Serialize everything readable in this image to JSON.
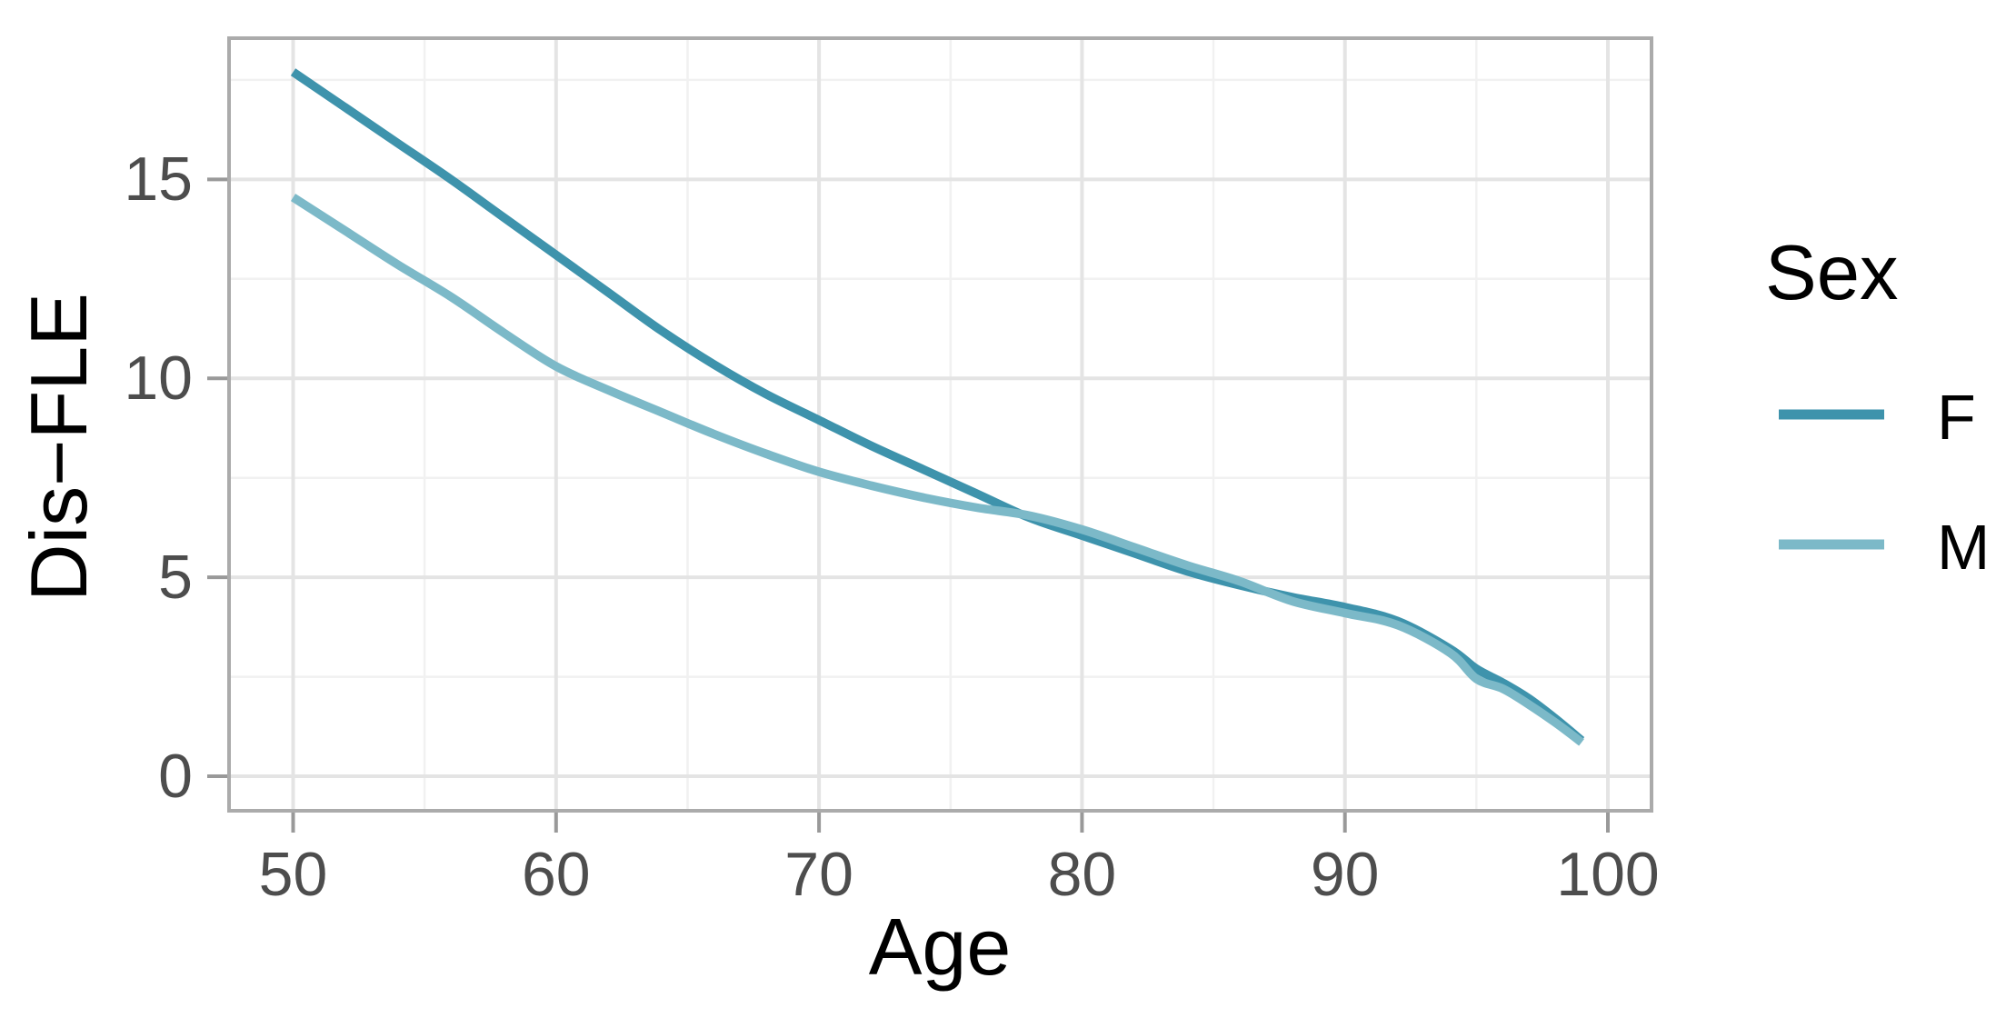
{
  "chart_data": {
    "type": "line",
    "title": "",
    "xlabel": "Age",
    "ylabel": "Dis−FLE",
    "x_ticks": [
      50,
      60,
      70,
      80,
      90,
      100
    ],
    "x_minor_ticks": [
      55,
      65,
      75,
      85,
      95
    ],
    "y_ticks": [
      0,
      5,
      10,
      15
    ],
    "y_minor_ticks": [
      2.5,
      7.5,
      12.5,
      17.5
    ],
    "xlim": [
      47.5,
      101.7
    ],
    "ylim": [
      -0.9,
      18.6
    ],
    "grid": "major and minor gridlines on, white panel with gray border",
    "legend": {
      "title": "Sex",
      "position": "right"
    },
    "series": [
      {
        "name": "F",
        "color": "#3E93AC",
        "points": [
          [
            50,
            17.7
          ],
          [
            52,
            16.8
          ],
          [
            54,
            15.9
          ],
          [
            56,
            15.0
          ],
          [
            58,
            14.05
          ],
          [
            60,
            13.1
          ],
          [
            62,
            12.15
          ],
          [
            64,
            11.2
          ],
          [
            66,
            10.35
          ],
          [
            68,
            9.6
          ],
          [
            70,
            8.95
          ],
          [
            72,
            8.3
          ],
          [
            74,
            7.7
          ],
          [
            76,
            7.1
          ],
          [
            78,
            6.5
          ],
          [
            80,
            6.05
          ],
          [
            82,
            5.6
          ],
          [
            84,
            5.15
          ],
          [
            86,
            4.8
          ],
          [
            88,
            4.5
          ],
          [
            90,
            4.25
          ],
          [
            92,
            3.9
          ],
          [
            94,
            3.2
          ],
          [
            95,
            2.7
          ],
          [
            96,
            2.35
          ],
          [
            97,
            1.95
          ],
          [
            98,
            1.45
          ],
          [
            99,
            0.9
          ]
        ]
      },
      {
        "name": "M",
        "color": "#7CB9C8",
        "points": [
          [
            50,
            14.55
          ],
          [
            52,
            13.7
          ],
          [
            54,
            12.85
          ],
          [
            56,
            12.05
          ],
          [
            58,
            11.15
          ],
          [
            60,
            10.3
          ],
          [
            62,
            9.7
          ],
          [
            64,
            9.15
          ],
          [
            66,
            8.6
          ],
          [
            68,
            8.1
          ],
          [
            70,
            7.65
          ],
          [
            72,
            7.3
          ],
          [
            74,
            7.0
          ],
          [
            76,
            6.75
          ],
          [
            78,
            6.55
          ],
          [
            80,
            6.2
          ],
          [
            82,
            5.75
          ],
          [
            84,
            5.3
          ],
          [
            86,
            4.9
          ],
          [
            88,
            4.4
          ],
          [
            90,
            4.1
          ],
          [
            92,
            3.8
          ],
          [
            94,
            3.1
          ],
          [
            95,
            2.45
          ],
          [
            96,
            2.2
          ],
          [
            97,
            1.8
          ],
          [
            98,
            1.35
          ],
          [
            99,
            0.85
          ]
        ]
      }
    ]
  },
  "style": {
    "background": "#FFFFFF",
    "panel_background": "#FFFFFF",
    "panel_border": "#ABABAB",
    "grid_major": "#E4E4E4",
    "grid_minor": "#F1F1F1",
    "tick_mark": "#999999",
    "tick_label_color": "#4D4D4D",
    "text_color": "#000000",
    "series_F_color": "#3E93AC",
    "series_M_color": "#7CB9C8"
  }
}
